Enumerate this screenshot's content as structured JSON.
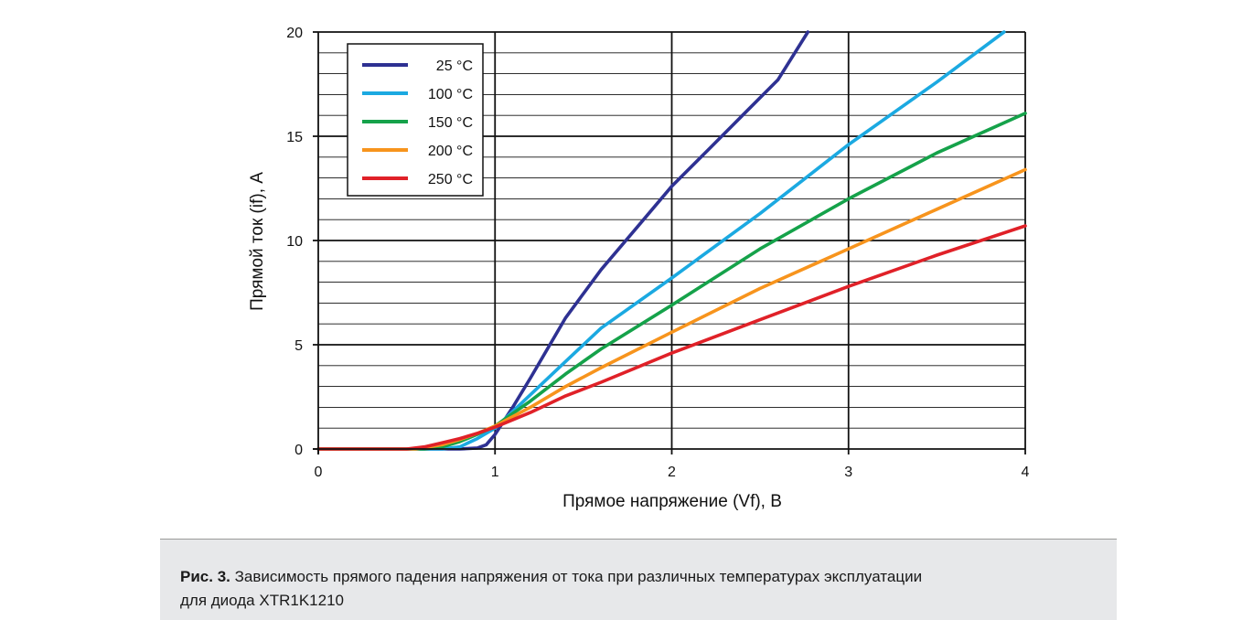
{
  "chart_data": {
    "type": "line",
    "xlabel": "Прямое напряжение (Vf), В",
    "ylabel": "Прямой ток (if), А",
    "xlim": [
      0,
      4
    ],
    "ylim": [
      0,
      20
    ],
    "x_ticks": [
      "0",
      "1",
      "2",
      "3",
      "4"
    ],
    "y_ticks": [
      "0",
      "5",
      "10",
      "15",
      "20"
    ],
    "grid": true,
    "legend_position": "top-left",
    "series": [
      {
        "name": "25 °C",
        "color": "#2e3192",
        "points": [
          [
            0,
            0
          ],
          [
            0.8,
            0
          ],
          [
            0.9,
            0.05
          ],
          [
            0.95,
            0.2
          ],
          [
            1.0,
            0.7
          ],
          [
            1.1,
            2.0
          ],
          [
            1.2,
            3.4
          ],
          [
            1.4,
            6.3
          ],
          [
            1.6,
            8.6
          ],
          [
            1.8,
            10.6
          ],
          [
            2.0,
            12.6
          ],
          [
            2.2,
            14.3
          ],
          [
            2.4,
            16.0
          ],
          [
            2.6,
            17.7
          ],
          [
            2.77,
            20.0
          ]
        ]
      },
      {
        "name": "100 °C",
        "color": "#1ba9e1",
        "points": [
          [
            0,
            0
          ],
          [
            0.7,
            0
          ],
          [
            0.8,
            0.1
          ],
          [
            0.9,
            0.5
          ],
          [
            1.0,
            1.0
          ],
          [
            1.2,
            2.6
          ],
          [
            1.4,
            4.2
          ],
          [
            1.6,
            5.8
          ],
          [
            2.0,
            8.2
          ],
          [
            2.5,
            11.3
          ],
          [
            3.0,
            14.6
          ],
          [
            3.5,
            17.6
          ],
          [
            3.88,
            20.0
          ]
        ]
      },
      {
        "name": "150 °C",
        "color": "#15a24a",
        "points": [
          [
            0,
            0
          ],
          [
            0.6,
            0
          ],
          [
            0.7,
            0.1
          ],
          [
            0.8,
            0.35
          ],
          [
            0.9,
            0.7
          ],
          [
            1.0,
            1.1
          ],
          [
            1.2,
            2.3
          ],
          [
            1.4,
            3.6
          ],
          [
            1.6,
            4.8
          ],
          [
            2.0,
            6.9
          ],
          [
            2.5,
            9.6
          ],
          [
            3.0,
            12.0
          ],
          [
            3.5,
            14.2
          ],
          [
            4.0,
            16.1
          ]
        ]
      },
      {
        "name": "200 °C",
        "color": "#f7941d",
        "points": [
          [
            0,
            0
          ],
          [
            0.55,
            0
          ],
          [
            0.7,
            0.2
          ],
          [
            0.8,
            0.45
          ],
          [
            0.9,
            0.75
          ],
          [
            1.0,
            1.1
          ],
          [
            1.2,
            2.0
          ],
          [
            1.4,
            3.0
          ],
          [
            1.6,
            3.9
          ],
          [
            2.0,
            5.6
          ],
          [
            2.5,
            7.7
          ],
          [
            3.0,
            9.6
          ],
          [
            3.5,
            11.5
          ],
          [
            4.0,
            13.4
          ]
        ]
      },
      {
        "name": "250 °C",
        "color": "#e02128",
        "points": [
          [
            0,
            0
          ],
          [
            0.5,
            0
          ],
          [
            0.6,
            0.1
          ],
          [
            0.7,
            0.3
          ],
          [
            0.8,
            0.5
          ],
          [
            0.9,
            0.75
          ],
          [
            1.0,
            1.05
          ],
          [
            1.2,
            1.75
          ],
          [
            1.4,
            2.55
          ],
          [
            1.6,
            3.2
          ],
          [
            2.0,
            4.6
          ],
          [
            2.5,
            6.2
          ],
          [
            3.0,
            7.8
          ],
          [
            3.5,
            9.3
          ],
          [
            4.0,
            10.7
          ]
        ]
      }
    ]
  },
  "caption": {
    "label": "Рис. 3.",
    "text": " Зависимость прямого падения напряжения от тока при различных температурах эксплуатации",
    "line2": "для диода XTR1K1210"
  }
}
